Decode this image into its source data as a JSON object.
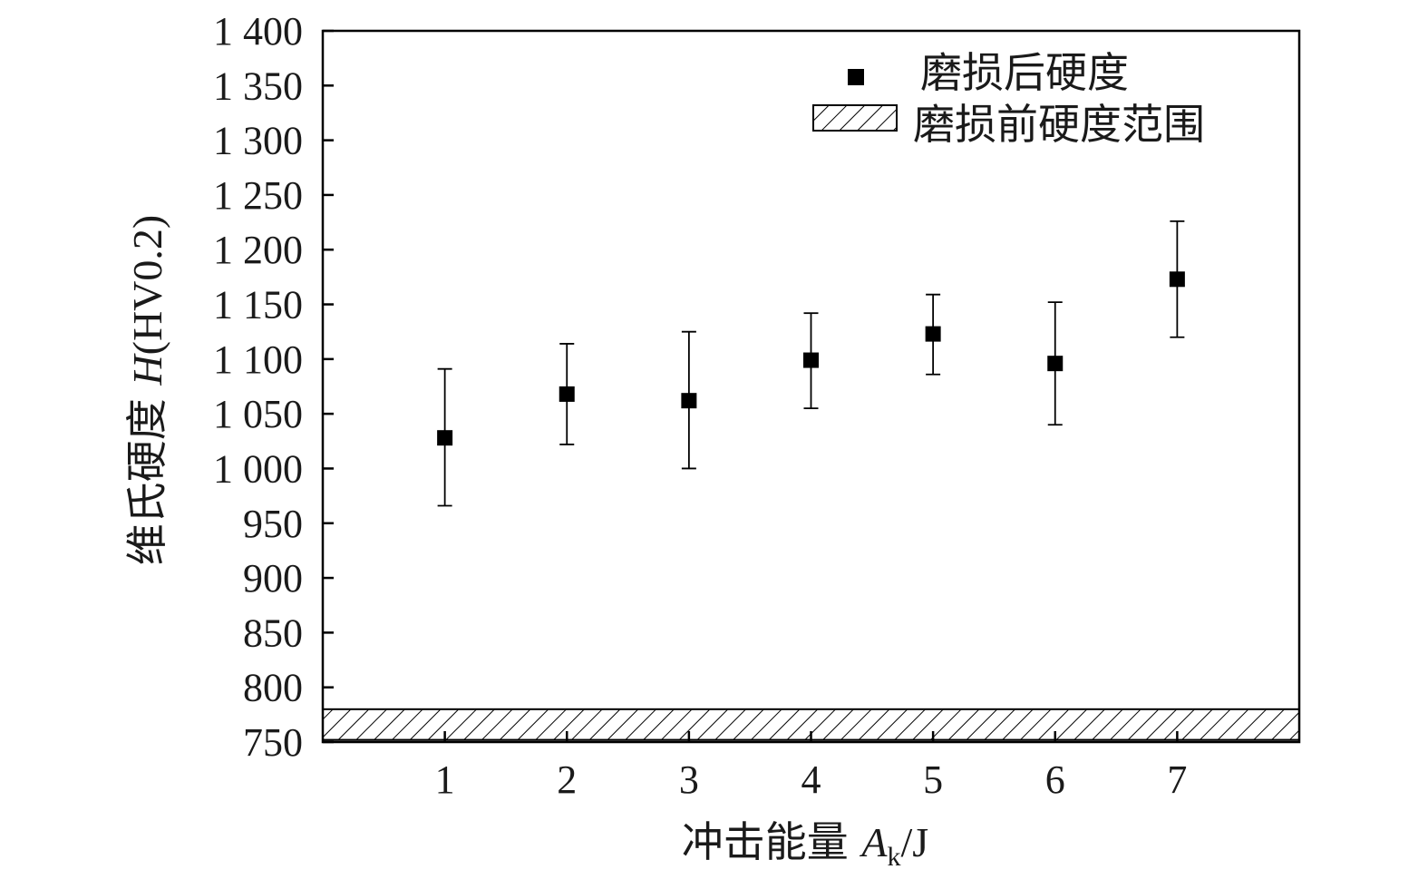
{
  "chart_data": {
    "type": "scatter",
    "x": [
      1,
      2,
      3,
      4,
      5,
      6,
      7
    ],
    "xlim": [
      0,
      8
    ],
    "ylim": [
      750,
      1400
    ],
    "xticks": [
      "1",
      "2",
      "3",
      "4",
      "5",
      "6",
      "7"
    ],
    "yticks": [
      {
        "value": 1400,
        "label": "1 400"
      },
      {
        "value": 1350,
        "label": "1 350"
      },
      {
        "value": 1300,
        "label": "1 300"
      },
      {
        "value": 1250,
        "label": "1 250"
      },
      {
        "value": 1200,
        "label": "1 200"
      },
      {
        "value": 1150,
        "label": "1 150"
      },
      {
        "value": 1100,
        "label": "1 100"
      },
      {
        "value": 1050,
        "label": "1 050"
      },
      {
        "value": 1000,
        "label": "1 000"
      },
      {
        "value": 950,
        "label": "950"
      },
      {
        "value": 900,
        "label": "900"
      },
      {
        "value": 850,
        "label": "850"
      },
      {
        "value": 800,
        "label": "800"
      },
      {
        "value": 750,
        "label": "750"
      }
    ],
    "series": [
      {
        "name": "磨损后硬度",
        "marker": "square",
        "color": "#000000",
        "values": [
          1028,
          1068,
          1062,
          1099,
          1123,
          1096,
          1173
        ],
        "err_low": [
          966,
          1022,
          1000,
          1055,
          1086,
          1040,
          1120
        ],
        "err_high": [
          1091,
          1114,
          1125,
          1142,
          1159,
          1152,
          1226
        ]
      }
    ],
    "band": {
      "name": "磨损前硬度范围",
      "pattern": "hatch",
      "y_range": [
        752,
        780
      ]
    },
    "xlabel": {
      "main": "冲击能量 ",
      "var": "A",
      "sub": "k",
      "unit": "/J"
    },
    "ylabel": {
      "main": "维氏硬度 ",
      "var": "H",
      "unit": "(HV0.2)"
    },
    "legend_position": "top-right",
    "grid": false
  }
}
